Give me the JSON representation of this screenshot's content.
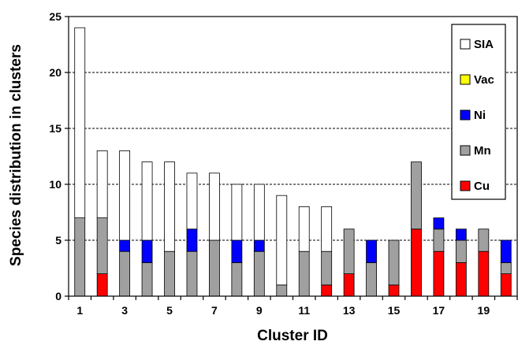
{
  "chart_data": {
    "type": "bar",
    "stacked": true,
    "title": "",
    "xlabel": "Cluster ID",
    "ylabel": "Species distribution in clusters",
    "ylim": [
      0,
      25
    ],
    "yticks": [
      "0",
      "5",
      "10",
      "15",
      "20",
      "25"
    ],
    "x_tick_labels": [
      "1",
      "3",
      "5",
      "7",
      "9",
      "11",
      "13",
      "15",
      "17",
      "19"
    ],
    "grid": "horizontal dashed",
    "legend_position": "top-right",
    "categories": [
      1,
      2,
      3,
      4,
      5,
      6,
      7,
      8,
      9,
      10,
      11,
      12,
      13,
      14,
      15,
      16,
      17,
      18,
      19,
      20
    ],
    "series": [
      {
        "name": "Cu",
        "color": "#ff0000",
        "values": [
          0,
          2,
          0,
          0,
          0,
          0,
          0,
          0,
          0,
          0,
          0,
          1,
          2,
          0,
          1,
          6,
          4,
          3,
          4,
          2
        ]
      },
      {
        "name": "Mn",
        "color": "#a0a0a0",
        "values": [
          7,
          5,
          4,
          3,
          4,
          4,
          5,
          3,
          4,
          1,
          4,
          3,
          4,
          3,
          4,
          6,
          2,
          2,
          2,
          1
        ]
      },
      {
        "name": "Ni",
        "color": "#0000ff",
        "values": [
          0,
          0,
          1,
          2,
          0,
          2,
          0,
          2,
          1,
          0,
          0,
          0,
          0,
          2,
          0,
          0,
          1,
          1,
          0,
          2
        ]
      },
      {
        "name": "Vac",
        "color": "#ffff00",
        "values": [
          0,
          0,
          0,
          0,
          0,
          0,
          0,
          0,
          0,
          0,
          0,
          0,
          0,
          0,
          0,
          0,
          0,
          0,
          0,
          0
        ]
      },
      {
        "name": "SIA",
        "color": "#ffffff",
        "values": [
          17,
          6,
          8,
          7,
          8,
          5,
          6,
          5,
          5,
          8,
          4,
          4,
          0,
          0,
          0,
          0,
          0,
          0,
          0,
          0
        ]
      }
    ],
    "legend_order": [
      "SIA",
      "Vac",
      "Ni",
      "Mn",
      "Cu"
    ]
  }
}
